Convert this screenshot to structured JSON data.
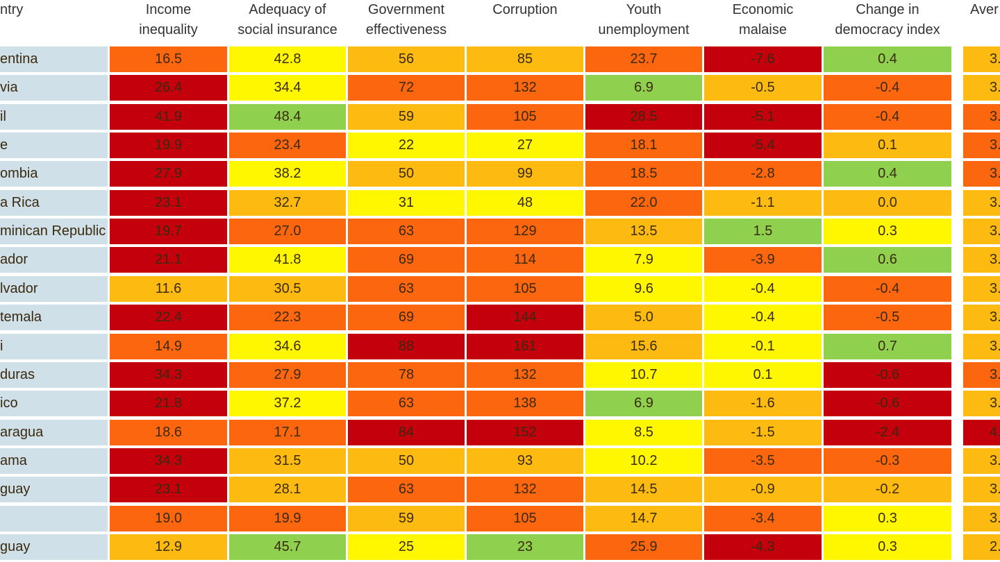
{
  "table": {
    "headers": [
      [
        "ntry"
      ],
      [
        "Income",
        "inequality"
      ],
      [
        "Adequacy of",
        "social insurance"
      ],
      [
        "Government",
        "effectiveness"
      ],
      [
        "Corruption"
      ],
      [
        "Youth",
        "unemployment"
      ],
      [
        "Economic",
        "malaise"
      ],
      [
        "Change in",
        "democracy index"
      ],
      [
        "Aver"
      ]
    ],
    "rows": [
      {
        "country": "entina",
        "cells": [
          {
            "text": "16.5",
            "color": "#fb660f"
          },
          {
            "text": "42.8",
            "color": "#fff700"
          },
          {
            "text": "56",
            "color": "#fdbb12"
          },
          {
            "text": "85",
            "color": "#fdbb12"
          },
          {
            "text": "23.7",
            "color": "#fb660f"
          },
          {
            "text": "-7.6",
            "color": "#c3000b"
          },
          {
            "text": "0.4",
            "color": "#8fd14f"
          },
          {
            "text": "3.",
            "color": "#fdbb12"
          }
        ]
      },
      {
        "country": "via",
        "cells": [
          {
            "text": "26.4",
            "color": "#c3000b"
          },
          {
            "text": "34.4",
            "color": "#fff700"
          },
          {
            "text": "72",
            "color": "#fb660f"
          },
          {
            "text": "132",
            "color": "#fb660f"
          },
          {
            "text": "6.9",
            "color": "#8fd14f"
          },
          {
            "text": "-0.5",
            "color": "#fdbb12"
          },
          {
            "text": "-0.4",
            "color": "#fb660f"
          },
          {
            "text": "3.",
            "color": "#fdbb12"
          }
        ]
      },
      {
        "country": "il",
        "cells": [
          {
            "text": "41.9",
            "color": "#c3000b"
          },
          {
            "text": "48.4",
            "color": "#8fd14f"
          },
          {
            "text": "59",
            "color": "#fdbb12"
          },
          {
            "text": "105",
            "color": "#fb660f"
          },
          {
            "text": "28.5",
            "color": "#c3000b"
          },
          {
            "text": "-5.1",
            "color": "#c3000b"
          },
          {
            "text": "-0.4",
            "color": "#fb660f"
          },
          {
            "text": "3.",
            "color": "#fb660f"
          }
        ]
      },
      {
        "country": "e",
        "cells": [
          {
            "text": "19.9",
            "color": "#c3000b"
          },
          {
            "text": "23.4",
            "color": "#fb660f"
          },
          {
            "text": "22",
            "color": "#fff700"
          },
          {
            "text": "27",
            "color": "#fff700"
          },
          {
            "text": "18.1",
            "color": "#fb660f"
          },
          {
            "text": "-5.4",
            "color": "#c3000b"
          },
          {
            "text": "0.1",
            "color": "#fdbb12"
          },
          {
            "text": "3.",
            "color": "#fb660f"
          }
        ]
      },
      {
        "country": "ombia",
        "cells": [
          {
            "text": "27.9",
            "color": "#c3000b"
          },
          {
            "text": "38.2",
            "color": "#fff700"
          },
          {
            "text": "50",
            "color": "#fdbb12"
          },
          {
            "text": "99",
            "color": "#fdbb12"
          },
          {
            "text": "18.5",
            "color": "#fb660f"
          },
          {
            "text": "-2.8",
            "color": "#fb660f"
          },
          {
            "text": "0.4",
            "color": "#8fd14f"
          },
          {
            "text": "3.",
            "color": "#fb660f"
          }
        ]
      },
      {
        "country": "a Rica",
        "cells": [
          {
            "text": "23.1",
            "color": "#c3000b"
          },
          {
            "text": "32.7",
            "color": "#fdbb12"
          },
          {
            "text": "31",
            "color": "#fff700"
          },
          {
            "text": "48",
            "color": "#fff700"
          },
          {
            "text": "22.0",
            "color": "#fb660f"
          },
          {
            "text": "-1.1",
            "color": "#fdbb12"
          },
          {
            "text": "0.0",
            "color": "#fdbb12"
          },
          {
            "text": "3.",
            "color": "#fdbb12"
          }
        ]
      },
      {
        "country": "minican Republic",
        "cells": [
          {
            "text": "19.7",
            "color": "#c3000b"
          },
          {
            "text": "27.0",
            "color": "#fb660f"
          },
          {
            "text": "63",
            "color": "#fb660f"
          },
          {
            "text": "129",
            "color": "#fb660f"
          },
          {
            "text": "13.5",
            "color": "#fdbb12"
          },
          {
            "text": "1.5",
            "color": "#8fd14f"
          },
          {
            "text": "0.3",
            "color": "#fff700"
          },
          {
            "text": "3.",
            "color": "#fdbb12"
          }
        ]
      },
      {
        "country": "ador",
        "cells": [
          {
            "text": "21.1",
            "color": "#c3000b"
          },
          {
            "text": "41.8",
            "color": "#fff700"
          },
          {
            "text": "69",
            "color": "#fb660f"
          },
          {
            "text": "114",
            "color": "#fb660f"
          },
          {
            "text": "7.9",
            "color": "#fff700"
          },
          {
            "text": "-3.9",
            "color": "#fb660f"
          },
          {
            "text": "0.6",
            "color": "#8fd14f"
          },
          {
            "text": "3.",
            "color": "#fdbb12"
          }
        ]
      },
      {
        "country": "lvador",
        "cells": [
          {
            "text": "11.6",
            "color": "#fdbb12"
          },
          {
            "text": "30.5",
            "color": "#fdbb12"
          },
          {
            "text": "63",
            "color": "#fb660f"
          },
          {
            "text": "105",
            "color": "#fb660f"
          },
          {
            "text": "9.6",
            "color": "#fff700"
          },
          {
            "text": "-0.4",
            "color": "#fff700"
          },
          {
            "text": "-0.4",
            "color": "#fb660f"
          },
          {
            "text": "3.",
            "color": "#fdbb12"
          }
        ]
      },
      {
        "country": "temala",
        "cells": [
          {
            "text": "22.4",
            "color": "#c3000b"
          },
          {
            "text": "22.3",
            "color": "#fb660f"
          },
          {
            "text": "69",
            "color": "#fb660f"
          },
          {
            "text": "144",
            "color": "#c3000b"
          },
          {
            "text": "5.0",
            "color": "#fdbb12"
          },
          {
            "text": "-0.4",
            "color": "#fff700"
          },
          {
            "text": "-0.5",
            "color": "#fb660f"
          },
          {
            "text": "3.",
            "color": "#fdbb12"
          }
        ]
      },
      {
        "country": "i",
        "cells": [
          {
            "text": "14.9",
            "color": "#fb660f"
          },
          {
            "text": "34.6",
            "color": "#fff700"
          },
          {
            "text": "88",
            "color": "#c3000b"
          },
          {
            "text": "161",
            "color": "#c3000b"
          },
          {
            "text": "15.6",
            "color": "#fdbb12"
          },
          {
            "text": "-0.1",
            "color": "#fff700"
          },
          {
            "text": "0.7",
            "color": "#8fd14f"
          },
          {
            "text": "3.",
            "color": "#fdbb12"
          }
        ]
      },
      {
        "country": "duras",
        "cells": [
          {
            "text": "34.3",
            "color": "#c3000b"
          },
          {
            "text": "27.9",
            "color": "#fb660f"
          },
          {
            "text": "78",
            "color": "#fb660f"
          },
          {
            "text": "132",
            "color": "#fb660f"
          },
          {
            "text": "10.7",
            "color": "#fff700"
          },
          {
            "text": "0.1",
            "color": "#fff700"
          },
          {
            "text": "-0.6",
            "color": "#c3000b"
          },
          {
            "text": "3.",
            "color": "#fb660f"
          }
        ]
      },
      {
        "country": "ico",
        "cells": [
          {
            "text": "21.8",
            "color": "#c3000b"
          },
          {
            "text": "37.2",
            "color": "#fff700"
          },
          {
            "text": "63",
            "color": "#fb660f"
          },
          {
            "text": "138",
            "color": "#fb660f"
          },
          {
            "text": "6.9",
            "color": "#8fd14f"
          },
          {
            "text": "-1.6",
            "color": "#fdbb12"
          },
          {
            "text": "-0.6",
            "color": "#c3000b"
          },
          {
            "text": "3.",
            "color": "#fdbb12"
          }
        ]
      },
      {
        "country": "aragua",
        "cells": [
          {
            "text": "18.6",
            "color": "#fb660f"
          },
          {
            "text": "17.1",
            "color": "#fb660f"
          },
          {
            "text": "84",
            "color": "#c3000b"
          },
          {
            "text": "152",
            "color": "#c3000b"
          },
          {
            "text": "8.5",
            "color": "#fff700"
          },
          {
            "text": "-1.5",
            "color": "#fdbb12"
          },
          {
            "text": "-2.4",
            "color": "#c3000b"
          },
          {
            "text": "4.",
            "color": "#c3000b"
          }
        ]
      },
      {
        "country": "ama",
        "cells": [
          {
            "text": "34.3",
            "color": "#c3000b"
          },
          {
            "text": "31.5",
            "color": "#fdbb12"
          },
          {
            "text": "50",
            "color": "#fdbb12"
          },
          {
            "text": "93",
            "color": "#fdbb12"
          },
          {
            "text": "10.2",
            "color": "#fff700"
          },
          {
            "text": "-3.5",
            "color": "#fb660f"
          },
          {
            "text": "-0.3",
            "color": "#fb660f"
          },
          {
            "text": "3.",
            "color": "#fdbb12"
          }
        ]
      },
      {
        "country": "guay",
        "cells": [
          {
            "text": "23.1",
            "color": "#c3000b"
          },
          {
            "text": "28.1",
            "color": "#fdbb12"
          },
          {
            "text": "63",
            "color": "#fb660f"
          },
          {
            "text": "132",
            "color": "#fb660f"
          },
          {
            "text": "14.5",
            "color": "#fdbb12"
          },
          {
            "text": "-0.9",
            "color": "#fdbb12"
          },
          {
            "text": "-0.2",
            "color": "#fdbb12"
          },
          {
            "text": "3.",
            "color": "#fdbb12"
          }
        ]
      },
      {
        "country": "",
        "cells": [
          {
            "text": "19.0",
            "color": "#fb660f"
          },
          {
            "text": "19.9",
            "color": "#fb660f"
          },
          {
            "text": "59",
            "color": "#fdbb12"
          },
          {
            "text": "105",
            "color": "#fb660f"
          },
          {
            "text": "14.7",
            "color": "#fdbb12"
          },
          {
            "text": "-3.4",
            "color": "#fb660f"
          },
          {
            "text": "0.3",
            "color": "#fff700"
          },
          {
            "text": "3.",
            "color": "#fdbb12"
          }
        ]
      },
      {
        "country": "guay",
        "cells": [
          {
            "text": "12.9",
            "color": "#fdbb12"
          },
          {
            "text": "45.7",
            "color": "#8fd14f"
          },
          {
            "text": "25",
            "color": "#fff700"
          },
          {
            "text": "23",
            "color": "#8fd14f"
          },
          {
            "text": "25.9",
            "color": "#fb660f"
          },
          {
            "text": "-4.3",
            "color": "#c3000b"
          },
          {
            "text": "0.3",
            "color": "#fff700"
          },
          {
            "text": "2.",
            "color": "#fdbb12"
          }
        ]
      }
    ]
  }
}
